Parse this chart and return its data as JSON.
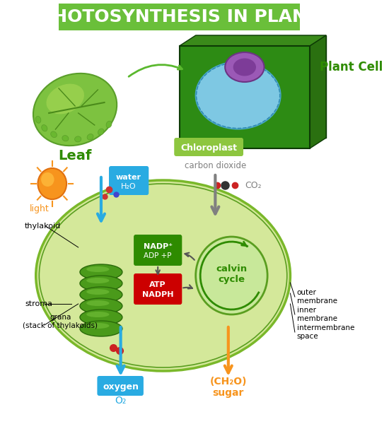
{
  "title": "PHOTOSYNTHESIS IN PLANT",
  "title_bg": "#6abf3a",
  "title_color": "#ffffff",
  "title_fontsize": 18,
  "bg_color": "#ffffff",
  "leaf_label": "Leaf",
  "leaf_label_color": "#2e8b00",
  "plant_cell_label": "Plant Cell",
  "plant_cell_label_color": "#2e8b00",
  "chloroplast_label": "Chloroplast",
  "chloroplast_label_color": "#2e8b00",
  "chloroplast_label_bg": "#8dc63f",
  "water_label": "water",
  "water_formula": "H₂O",
  "water_color": "#29abe2",
  "light_label": "light",
  "light_color": "#f7941d",
  "co2_label": "carbon dioxide",
  "co2_formula": "CO₂",
  "co2_color": "#808080",
  "thylakoid_label": "thylakoid",
  "thylakoid_color": "#000000",
  "stroma_label": "stroma",
  "grana_label": "grana\n(stack of thylakoids)",
  "nadp_label": "NADP⁺",
  "nadp_color": "#2e8b00",
  "nadp_bg": "#2e8b00",
  "adp_label": "ADP\n+P",
  "adp_color": "#2e8b00",
  "atp_label": "ATP",
  "atp_color": "#cc0000",
  "atp_bg": "#cc0000",
  "nadph_label": "NADPH",
  "nadph_color": "#cc0000",
  "nadph_bg": "#cc0000",
  "calvin_label": "calvin\ncycle",
  "calvin_color": "#2e8b00",
  "oxygen_label": "oxygen",
  "oxygen_formula": "O₂",
  "oxygen_color": "#29abe2",
  "oxygen_bg": "#29abe2",
  "sugar_label": "(CH₂O)\nsugar",
  "sugar_color": "#f7941d",
  "outer_membrane": "outer\nmembrane",
  "inner_membrane": "inner\nmembrane",
  "intermembrane": "intermembrane\nspace",
  "membrane_color": "#000000",
  "water_arrow_color": "#29abe2",
  "co2_arrow_color": "#808080",
  "oxygen_arrow_color": "#29abe2",
  "sugar_arrow_color": "#f7941d",
  "cell_wall_color": "#2d6e1e",
  "chloroplast_body_color": "#c8e6a0",
  "thylakoid_stack_color": "#3a7d1e",
  "stroma_ellipse_color": "#d4e89a"
}
